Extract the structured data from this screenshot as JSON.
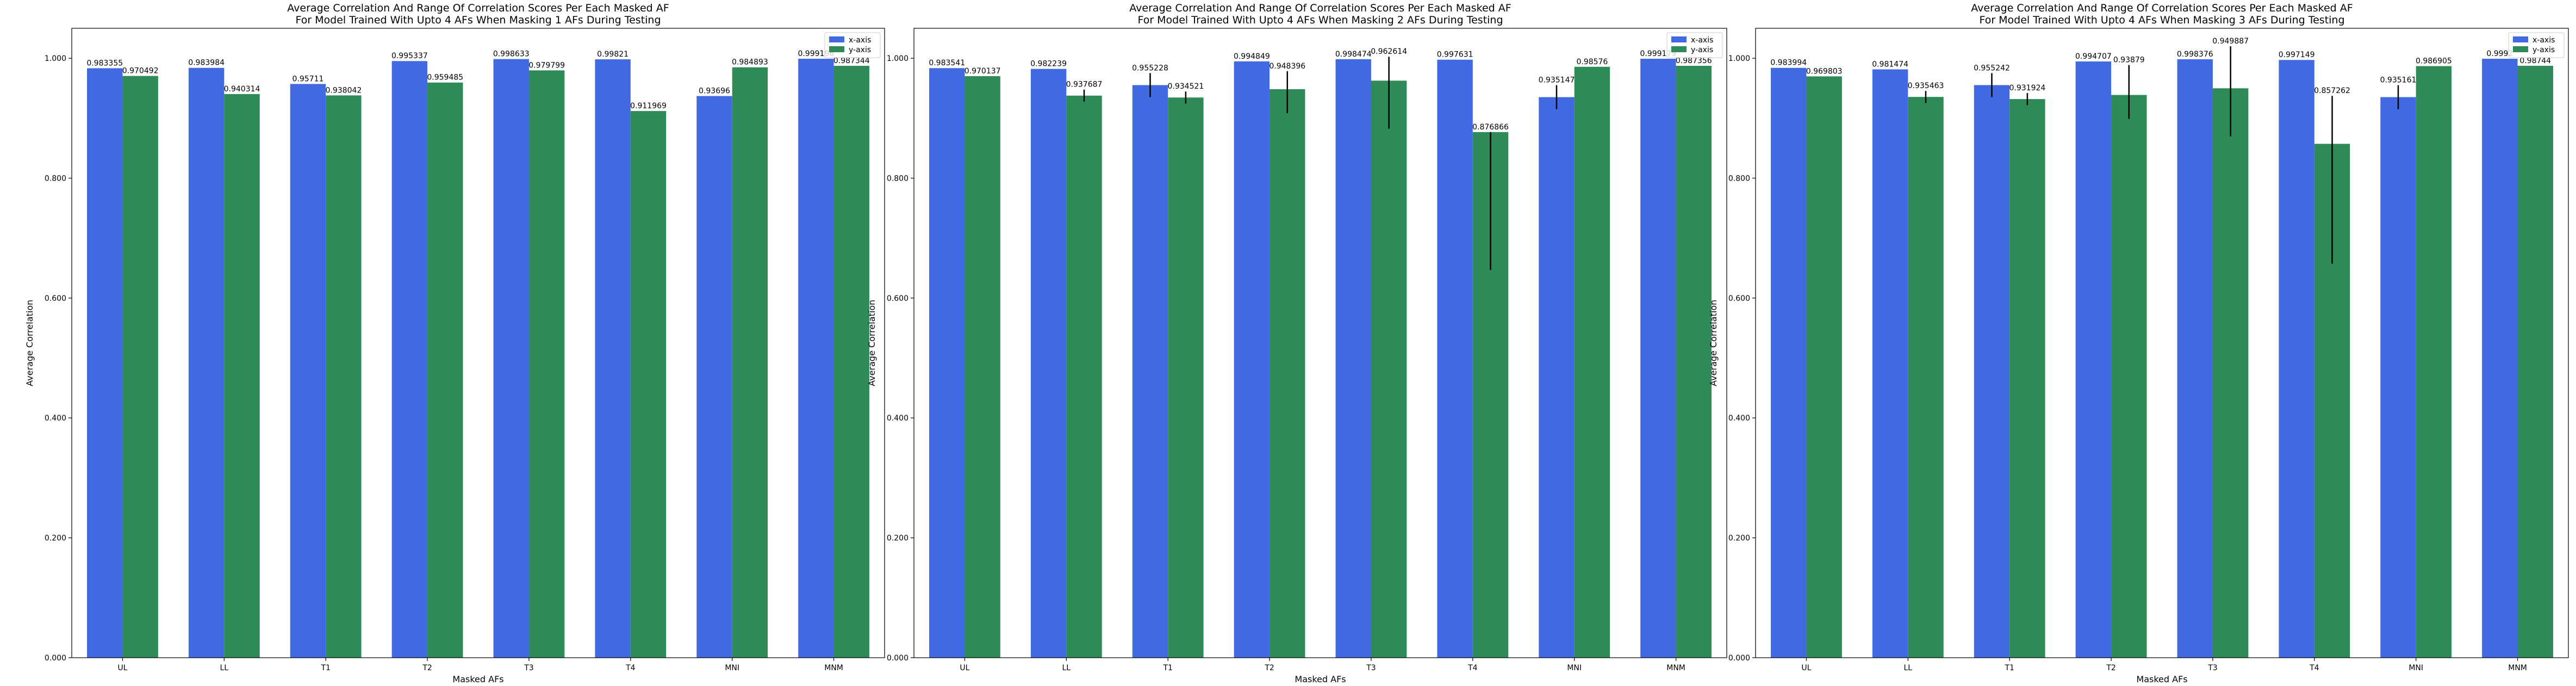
{
  "colors": {
    "x_axis": "#4169e1",
    "y_axis": "#2e8b57",
    "errorbar": "#000000",
    "frame": "#000000"
  },
  "chart_data": [
    {
      "type": "bar",
      "title": "Average Correlation And Range Of Correlation Scores Per Each Masked AF\nFor Model Trained With Upto 4 AFs When Masking 1 AFs During Testing",
      "xlabel": "Masked AFs",
      "ylabel": "Average Correlation",
      "ylim": [
        0,
        1.05
      ],
      "yticks": [
        "0.000",
        "0.200",
        "0.400",
        "0.600",
        "0.800",
        "1.000"
      ],
      "legend_position": "top-right",
      "categories": [
        "UL",
        "LL",
        "T1",
        "T2",
        "T3",
        "T4",
        "MNI",
        "MNM"
      ],
      "series": [
        {
          "name": "x-axis",
          "values": [
            0.983355,
            0.983984,
            0.95711,
            0.995337,
            0.998633,
            0.99821,
            0.93696,
            0.999196
          ],
          "labels": [
            "0.983355",
            "0.983984",
            "0.95711",
            "0.995337",
            "0.998633",
            "0.99821",
            "0.93696",
            "0.999196"
          ],
          "err_low": [
            0,
            0,
            0,
            0,
            0,
            0,
            0,
            0
          ],
          "err_high": [
            0,
            0,
            0,
            0,
            0,
            0,
            0,
            0
          ]
        },
        {
          "name": "y-axis",
          "values": [
            0.970492,
            0.940314,
            0.938042,
            0.959485,
            0.979799,
            0.911969,
            0.984893,
            0.987344
          ],
          "labels": [
            "0.970492",
            "0.940314",
            "0.938042",
            "0.959485",
            "0.979799",
            "0.911969",
            "0.984893",
            "0.987344"
          ],
          "err_low": [
            0,
            0,
            0,
            0,
            0,
            0,
            0,
            0
          ],
          "err_high": [
            0,
            0,
            0,
            0,
            0,
            0,
            0,
            0
          ]
        }
      ]
    },
    {
      "type": "bar",
      "title": "Average Correlation And Range Of Correlation Scores Per Each Masked AF\nFor Model Trained With Upto 4 AFs When Masking 2 AFs During Testing",
      "xlabel": "Masked AFs",
      "ylabel": "Average Correlation",
      "ylim": [
        0,
        1.05
      ],
      "yticks": [
        "0.000",
        "0.200",
        "0.400",
        "0.600",
        "0.800",
        "1.000"
      ],
      "legend_position": "top-right",
      "categories": [
        "UL",
        "LL",
        "T1",
        "T2",
        "T3",
        "T4",
        "MNI",
        "MNM"
      ],
      "series": [
        {
          "name": "x-axis",
          "values": [
            0.983541,
            0.982239,
            0.955228,
            0.994849,
            0.998474,
            0.997631,
            0.935147,
            0.999179
          ],
          "labels": [
            "0.983541",
            "0.982239",
            "0.955228",
            "0.994849",
            "0.998474",
            "0.997631",
            "0.935147",
            "0.999179"
          ],
          "err_low": [
            0,
            0,
            0.02,
            0,
            0,
            0,
            0.02,
            0
          ],
          "err_high": [
            0,
            0,
            0.02,
            0,
            0,
            0,
            0.02,
            0
          ]
        },
        {
          "name": "y-axis",
          "values": [
            0.970137,
            0.937687,
            0.934521,
            0.948396,
            0.962614,
            0.876866,
            0.98576,
            0.987356
          ],
          "labels": [
            "0.970137",
            "0.937687",
            "0.934521",
            "0.948396",
            "0.962614",
            "0.876866",
            "0.98576",
            "0.987356"
          ],
          "err_low": [
            0,
            0.01,
            0.01,
            0.04,
            0.08,
            0.23,
            0,
            0
          ],
          "err_high": [
            0,
            0.01,
            0.01,
            0.03,
            0.04,
            0,
            0,
            0
          ]
        }
      ]
    },
    {
      "type": "bar",
      "title": "Average Correlation And Range Of Correlation Scores Per Each Masked AF\nFor Model Trained With Upto 4 AFs When Masking 3 AFs During Testing",
      "xlabel": "Masked AFs",
      "ylabel": "Average Correlation",
      "ylim": [
        0,
        1.05
      ],
      "yticks": [
        "0.000",
        "0.200",
        "0.400",
        "0.600",
        "0.800",
        "1.000"
      ],
      "legend_position": "top-right",
      "categories": [
        "UL",
        "LL",
        "T1",
        "T2",
        "T3",
        "T4",
        "MNI",
        "MNM"
      ],
      "series": [
        {
          "name": "x-axis",
          "values": [
            0.983994,
            0.981474,
            0.955242,
            0.994707,
            0.998376,
            0.997149,
            0.935161,
            0.9992
          ],
          "labels": [
            "0.983994",
            "0.981474",
            "0.955242",
            "0.994707",
            "0.998376",
            "0.997149",
            "0.935161",
            "0.9992"
          ],
          "err_low": [
            0,
            0,
            0.02,
            0,
            0,
            0,
            0.02,
            0
          ],
          "err_high": [
            0,
            0,
            0.02,
            0,
            0,
            0,
            0.02,
            0
          ]
        },
        {
          "name": "y-axis",
          "values": [
            0.969803,
            0.935463,
            0.931924,
            0.93879,
            0.949887,
            0.857262,
            0.986905,
            0.98744
          ],
          "labels": [
            "0.969803",
            "0.935463",
            "0.931924",
            "0.93879",
            "0.949887",
            "0.857262",
            "0.986905",
            "0.98744"
          ],
          "err_low": [
            0,
            0.01,
            0.01,
            0.04,
            0.08,
            0.2,
            0,
            0
          ],
          "err_high": [
            0,
            0.01,
            0.01,
            0.05,
            0.07,
            0.08,
            0,
            0
          ]
        }
      ]
    }
  ]
}
